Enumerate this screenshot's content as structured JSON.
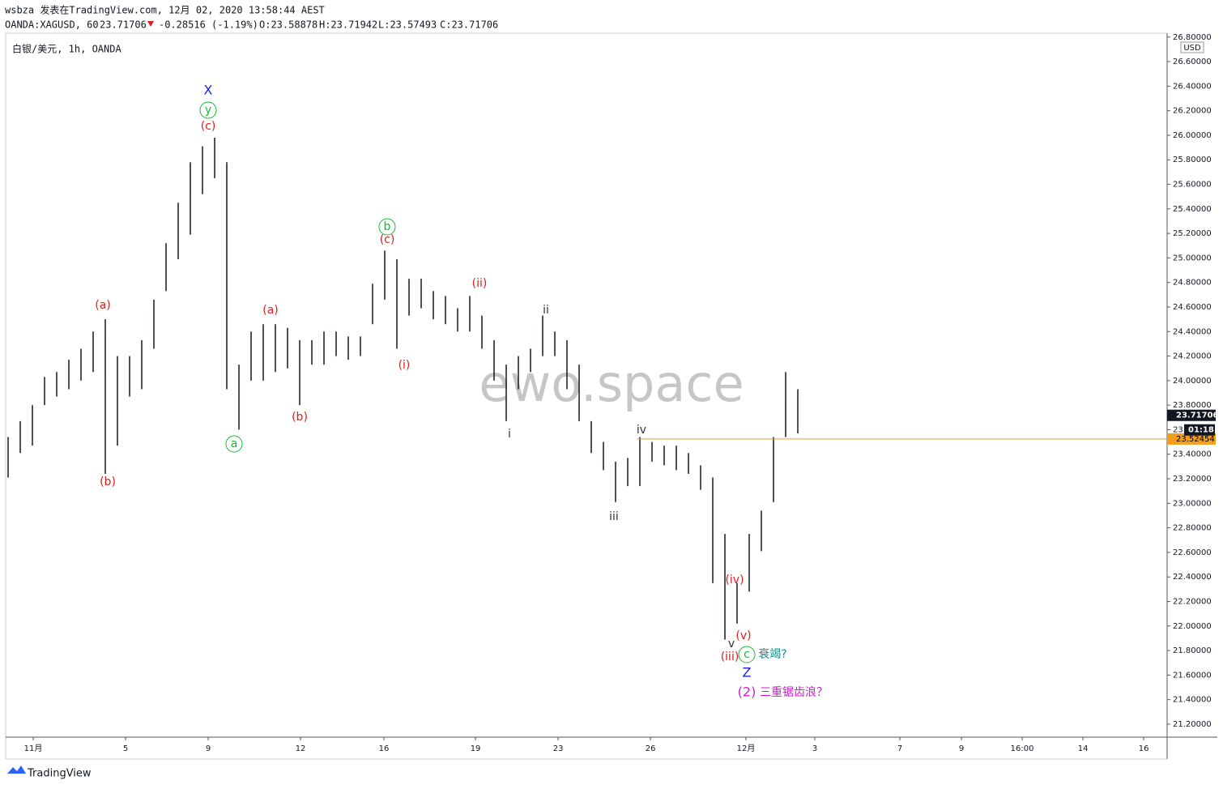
{
  "chart_data": {
    "type": "ohlc",
    "header": {
      "author_line": "wsbza 发表在TradingView.com, 12月 02, 2020 13:58:44 AEST",
      "symbol": "OANDA:XAGUSD, 60",
      "last": "23.71706",
      "change": "-0.28516 (-1.19%)",
      "open": "O:23.58878",
      "high": "H:23.71942",
      "low": "L:23.57493",
      "close": "C:23.71706"
    },
    "title": "白银/美元, 1h, OANDA",
    "watermark": "ewo.space",
    "currency": "USD",
    "countdown": "01:18",
    "last_price": 23.71706,
    "price_line": {
      "value": 23.52454,
      "color": "#f59d1d"
    },
    "footer": "TradingView",
    "x": [
      0,
      1,
      2,
      3,
      4,
      5,
      6,
      7,
      8,
      9,
      10,
      11,
      12,
      13,
      14,
      15,
      16,
      17,
      18,
      19,
      20,
      21,
      22,
      23,
      24,
      25,
      26,
      27,
      28,
      29,
      30,
      31,
      32,
      33,
      34,
      35,
      36,
      37,
      38,
      39,
      40,
      41,
      42,
      43,
      44,
      45,
      46,
      47,
      48,
      49,
      50,
      51,
      52,
      53,
      54,
      55,
      56,
      57,
      58,
      59,
      60,
      61,
      62,
      63,
      64,
      65
    ],
    "series": [
      {
        "color": "#131722",
        "high": [
          23.54,
          23.67,
          23.8,
          24.03,
          24.07,
          24.17,
          24.26,
          24.4,
          24.5,
          24.2,
          24.2,
          24.33,
          24.66,
          25.12,
          25.45,
          25.78,
          25.91,
          25.98,
          25.78,
          24.13,
          24.4,
          24.46,
          24.46,
          24.43,
          24.33,
          24.33,
          24.4,
          24.4,
          24.36,
          24.36,
          24.79,
          25.06,
          24.99,
          24.83,
          24.83,
          24.73,
          24.69,
          24.59,
          24.69,
          24.53,
          24.33,
          24.13,
          24.2,
          24.26,
          24.53,
          24.4,
          24.33,
          24.13,
          23.67,
          23.5,
          23.34,
          23.37,
          23.54,
          23.5,
          23.47,
          23.47,
          23.41,
          23.31,
          23.21,
          22.75,
          22.35,
          22.75,
          22.94,
          23.54,
          24.07,
          23.93
        ],
        "low": [
          23.21,
          23.41,
          23.47,
          23.8,
          23.87,
          23.93,
          24.0,
          24.07,
          23.24,
          23.47,
          23.87,
          23.93,
          24.26,
          24.73,
          24.99,
          25.19,
          25.52,
          25.65,
          23.93,
          23.6,
          24.0,
          24.0,
          24.07,
          24.1,
          23.8,
          24.13,
          24.13,
          24.2,
          24.17,
          24.2,
          24.46,
          24.66,
          24.26,
          24.53,
          24.59,
          24.5,
          24.46,
          24.4,
          24.4,
          24.26,
          24.0,
          23.67,
          23.93,
          24.07,
          24.2,
          24.2,
          23.93,
          23.67,
          23.41,
          23.27,
          23.01,
          23.14,
          23.14,
          23.34,
          23.31,
          23.27,
          23.24,
          23.11,
          22.35,
          21.89,
          22.02,
          22.28,
          22.61,
          23.01,
          23.54,
          23.57
        ]
      }
    ],
    "xlim": [
      -0.2,
      95.33
    ],
    "xticks": [
      {
        "value": 2.07,
        "label": "11月"
      },
      {
        "value": 9.67,
        "label": "5"
      },
      {
        "value": 16.47,
        "label": "9"
      },
      {
        "value": 24.07,
        "label": "12"
      },
      {
        "value": 30.93,
        "label": "16"
      },
      {
        "value": 38.47,
        "label": "19"
      },
      {
        "value": 45.27,
        "label": "23"
      },
      {
        "value": 52.87,
        "label": "26"
      },
      {
        "value": 60.73,
        "label": "12月"
      },
      {
        "value": 66.4,
        "label": "3"
      },
      {
        "value": 73.4,
        "label": "7"
      },
      {
        "value": 78.47,
        "label": "9"
      },
      {
        "value": 83.47,
        "label": "16:00"
      },
      {
        "value": 88.47,
        "label": "14"
      },
      {
        "value": 93.47,
        "label": "16"
      }
    ],
    "ylim": [
      21.094,
      26.825
    ],
    "yticks": [
      {
        "value": 21.2,
        "label": "21.20000"
      },
      {
        "value": 21.4,
        "label": "21.40000"
      },
      {
        "value": 21.6,
        "label": "21.60000"
      },
      {
        "value": 21.8,
        "label": "21.80000"
      },
      {
        "value": 22.0,
        "label": "22.00000"
      },
      {
        "value": 22.2,
        "label": "22.20000"
      },
      {
        "value": 22.4,
        "label": "22.40000"
      },
      {
        "value": 22.6,
        "label": "22.60000"
      },
      {
        "value": 22.8,
        "label": "22.80000"
      },
      {
        "value": 23.0,
        "label": "23.00000"
      },
      {
        "value": 23.2,
        "label": "23.20000"
      },
      {
        "value": 23.4,
        "label": "23.40000"
      },
      {
        "value": 23.6,
        "label": "23.60000"
      },
      {
        "value": 23.8,
        "label": "23.80000"
      },
      {
        "value": 24.0,
        "label": "24.00000"
      },
      {
        "value": 24.2,
        "label": "24.20000"
      },
      {
        "value": 24.4,
        "label": "24.40000"
      },
      {
        "value": 24.6,
        "label": "24.60000"
      },
      {
        "value": 24.8,
        "label": "24.80000"
      },
      {
        "value": 25.0,
        "label": "25.00000"
      },
      {
        "value": 25.2,
        "label": "25.20000"
      },
      {
        "value": 25.4,
        "label": "25.40000"
      },
      {
        "value": 25.6,
        "label": "25.60000"
      },
      {
        "value": 25.8,
        "label": "25.80000"
      },
      {
        "value": 26.0,
        "label": "26.00000"
      },
      {
        "value": 26.2,
        "label": "26.20000"
      },
      {
        "value": 26.4,
        "label": "26.40000"
      },
      {
        "value": 26.6,
        "label": "26.60000"
      },
      {
        "value": 26.8,
        "label": "26.80000"
      }
    ],
    "grid": false,
    "annotations": [
      "X",
      "y",
      "(c)",
      "(a)",
      "(b)",
      "a",
      "(a)",
      "(b)",
      "b",
      "(c)",
      "(i)",
      "(ii)",
      "ii",
      "i",
      "iii",
      "iv",
      "(iv)",
      "v",
      "(v)",
      "(iii)",
      "c",
      "衰竭?",
      "Z",
      "(2)",
      "三重锯齿浪？"
    ]
  }
}
